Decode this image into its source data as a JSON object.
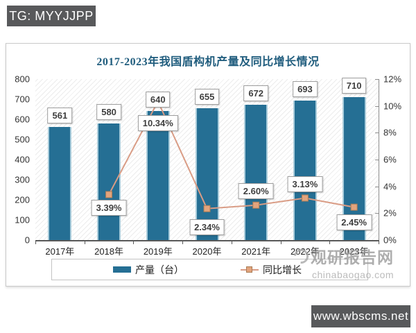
{
  "overlays": {
    "tg_badge": "TG: MYYJJPP",
    "site_badge": "www.wbscms.net"
  },
  "watermark": {
    "name": "观研报告网",
    "domain": "chinabaogao.com"
  },
  "chart_data": {
    "type": "bar+line combo",
    "title": "2017-2023年我国盾构机产量及同比增长情况",
    "categories": [
      "2017年",
      "2018年",
      "2019年",
      "2020年",
      "2021年",
      "2022年",
      "2023年"
    ],
    "series": [
      {
        "name": "产量（台）",
        "type": "bar",
        "axis": "left",
        "values": [
          561,
          580,
          640,
          655,
          672,
          693,
          710
        ],
        "color": "#256f94"
      },
      {
        "name": "同比增长",
        "type": "line",
        "axis": "right",
        "values": [
          null,
          3.39,
          10.34,
          2.34,
          2.6,
          3.13,
          2.45
        ],
        "labels": [
          null,
          "3.39%",
          "10.34%",
          "2.34%",
          "2.60%",
          "3.13%",
          "2.45%"
        ],
        "color": "#d99c85",
        "marker_color": "#e2a47d"
      }
    ],
    "axes": {
      "left": {
        "min": 0,
        "max": 800,
        "step": 100
      },
      "right": {
        "min": 0,
        "max": 12,
        "step": 2,
        "format": "percent"
      }
    },
    "grid": false,
    "legend_position": "bottom"
  }
}
